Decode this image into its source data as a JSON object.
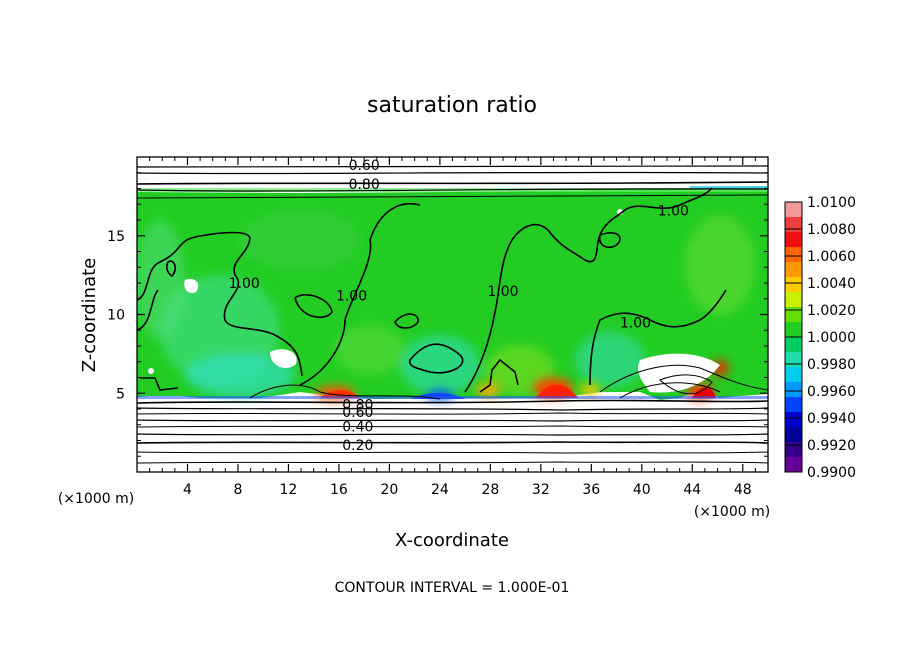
{
  "chart_data": {
    "type": "heatmap",
    "title": "saturation ratio",
    "xlabel": "X-coordinate",
    "ylabel": "Z-coordinate",
    "x_unit": "(×1000 m)",
    "y_unit": "(×1000 m)",
    "xlim": [
      0,
      50
    ],
    "ylim": [
      0,
      20
    ],
    "x_ticks": [
      4,
      8,
      12,
      16,
      20,
      24,
      28,
      32,
      36,
      40,
      44,
      48
    ],
    "y_ticks": [
      5,
      10,
      15
    ],
    "colorbar": {
      "ticks": [
        "1.0100",
        "1.0080",
        "1.0060",
        "1.0040",
        "1.0020",
        "1.0000",
        "0.9980",
        "0.9960",
        "0.9940",
        "0.9920",
        "0.9900"
      ],
      "colors": [
        "#f29a9a",
        "#ee4040",
        "#ee1010",
        "#ff6600",
        "#ff9900",
        "#ffcc00",
        "#c8ee00",
        "#66dd00",
        "#22cc22",
        "#00cc66",
        "#22ddaa",
        "#00ccee",
        "#0099ff",
        "#0044ff",
        "#0000cc",
        "#000099",
        "#330088",
        "#660099"
      ]
    },
    "contour_labels": [
      {
        "text": "0.60",
        "x": 18.0,
        "y": 19.5
      },
      {
        "text": "0.80",
        "x": 18.0,
        "y": 18.3
      },
      {
        "text": "1.00",
        "x": 42.5,
        "y": 16.6
      },
      {
        "text": "1.00",
        "x": 8.5,
        "y": 12.0
      },
      {
        "text": "1.00",
        "x": 17.0,
        "y": 11.2
      },
      {
        "text": "1.00",
        "x": 29.0,
        "y": 11.5
      },
      {
        "text": "1.00",
        "x": 39.5,
        "y": 9.5
      },
      {
        "text": "0.80",
        "x": 17.5,
        "y": 4.3
      },
      {
        "text": "0.60",
        "x": 17.5,
        "y": 3.8
      },
      {
        "text": "0.40",
        "x": 17.5,
        "y": 2.9
      },
      {
        "text": "0.20",
        "x": 17.5,
        "y": 1.7
      }
    ],
    "annotation": "CONTOUR INTERVAL = 1.000E-01"
  }
}
